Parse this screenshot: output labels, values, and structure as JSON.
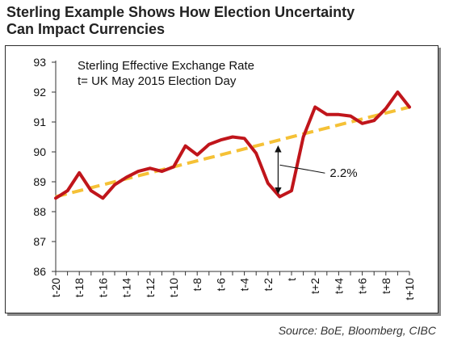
{
  "title": {
    "line1": "Sterling Example Shows How Election Uncertainty",
    "line2": "Can Impact Currencies"
  },
  "source": "Source: BoE, Bloomberg, CIBC",
  "colors": {
    "series": "#c0151b",
    "trend": "#f5c136",
    "axis": "#333333"
  },
  "chart_data": {
    "type": "line",
    "annotation_title": [
      "Sterling Effective Exchange Rate",
      "t= UK May 2015 Election Day"
    ],
    "xlabel": "",
    "ylabel": "",
    "ylim": [
      86,
      93
    ],
    "yticks": [
      86,
      87,
      88,
      89,
      90,
      91,
      92,
      93
    ],
    "x": [
      "t-20",
      "t-19",
      "t-18",
      "t-17",
      "t-16",
      "t-15",
      "t-14",
      "t-13",
      "t-12",
      "t-11",
      "t-10",
      "t-9",
      "t-8",
      "t-7",
      "t-6",
      "t-5",
      "t-4",
      "t-3",
      "t-2",
      "t-1",
      "t",
      "t+1",
      "t+2",
      "t+3",
      "t+4",
      "t+5",
      "t+6",
      "t+7",
      "t+8",
      "t+9",
      "t+10"
    ],
    "xtick_labels": [
      "t-20",
      "",
      "t-18",
      "",
      "t-16",
      "",
      "t-14",
      "",
      "t-12",
      "",
      "t-10",
      "",
      "t-8",
      "",
      "t-6",
      "",
      "t-4",
      "",
      "t-2",
      "",
      "t",
      "",
      "t+2",
      "",
      "t+4",
      "",
      "t+6",
      "",
      "t+8",
      "",
      "t+10"
    ],
    "grid": false,
    "series": [
      {
        "color": "#c0151b",
        "values": [
          88.45,
          88.7,
          89.3,
          88.7,
          88.45,
          88.9,
          89.15,
          89.35,
          89.45,
          89.35,
          89.5,
          90.2,
          89.9,
          90.25,
          90.4,
          90.5,
          90.45,
          89.95,
          88.95,
          88.5,
          88.7,
          90.5,
          91.5,
          91.25,
          91.25,
          91.2,
          90.95,
          91.05,
          91.45,
          92.0,
          91.5
        ]
      }
    ],
    "trendline": {
      "style": "dashed",
      "color": "#f5c136",
      "start": 88.5,
      "end": 91.5
    },
    "annotations": [
      {
        "label": "2.2%",
        "x": "t-1",
        "y_top": 90.3,
        "y_bottom": 88.5
      }
    ]
  }
}
